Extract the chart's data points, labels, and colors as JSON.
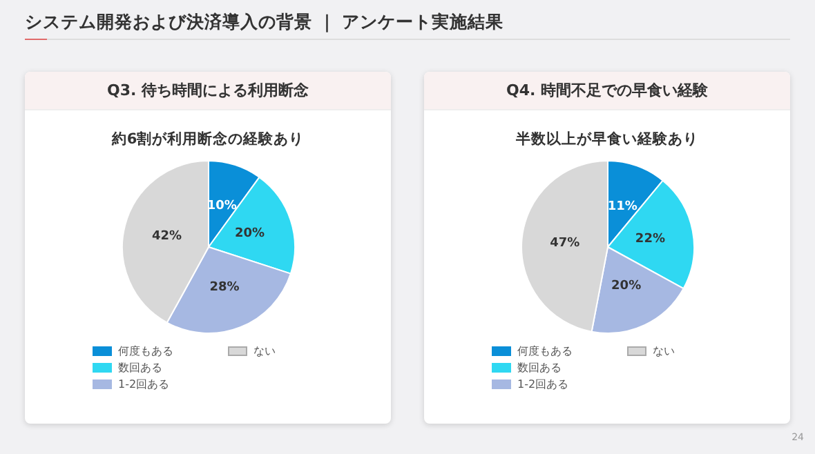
{
  "chart_data": [
    {
      "type": "pie",
      "title": "Q3. 待ち時間による利用断念",
      "subtitle": "約6割が利用断念の経験あり",
      "annotations": [
        "システム開発および決済導入の背景 ｜ アンケート実施結果"
      ],
      "categories": [
        "何度もある",
        "数回ある",
        "1-2回ある",
        "ない"
      ],
      "values": [
        10,
        20,
        28,
        42
      ],
      "value_labels": [
        "10%",
        "20%",
        "28%",
        "42%"
      ],
      "colors": [
        "#0a8fd8",
        "#2fd8f2",
        "#a6b8e2",
        "#d8d8d8"
      ],
      "legend": "bottom"
    },
    {
      "type": "pie",
      "title": "Q4. 時間不足での早食い経験",
      "subtitle": "半数以上が早食い経験あり",
      "annotations": [
        "24"
      ],
      "categories": [
        "何度もある",
        "数回ある",
        "1-2回ある",
        "ない"
      ],
      "values": [
        11,
        22,
        20,
        47
      ],
      "value_labels": [
        "11%",
        "22%",
        "20%",
        "47%"
      ],
      "colors": [
        "#0a8fd8",
        "#2fd8f2",
        "#a6b8e2",
        "#d8d8d8"
      ],
      "legend": "bottom"
    }
  ]
}
